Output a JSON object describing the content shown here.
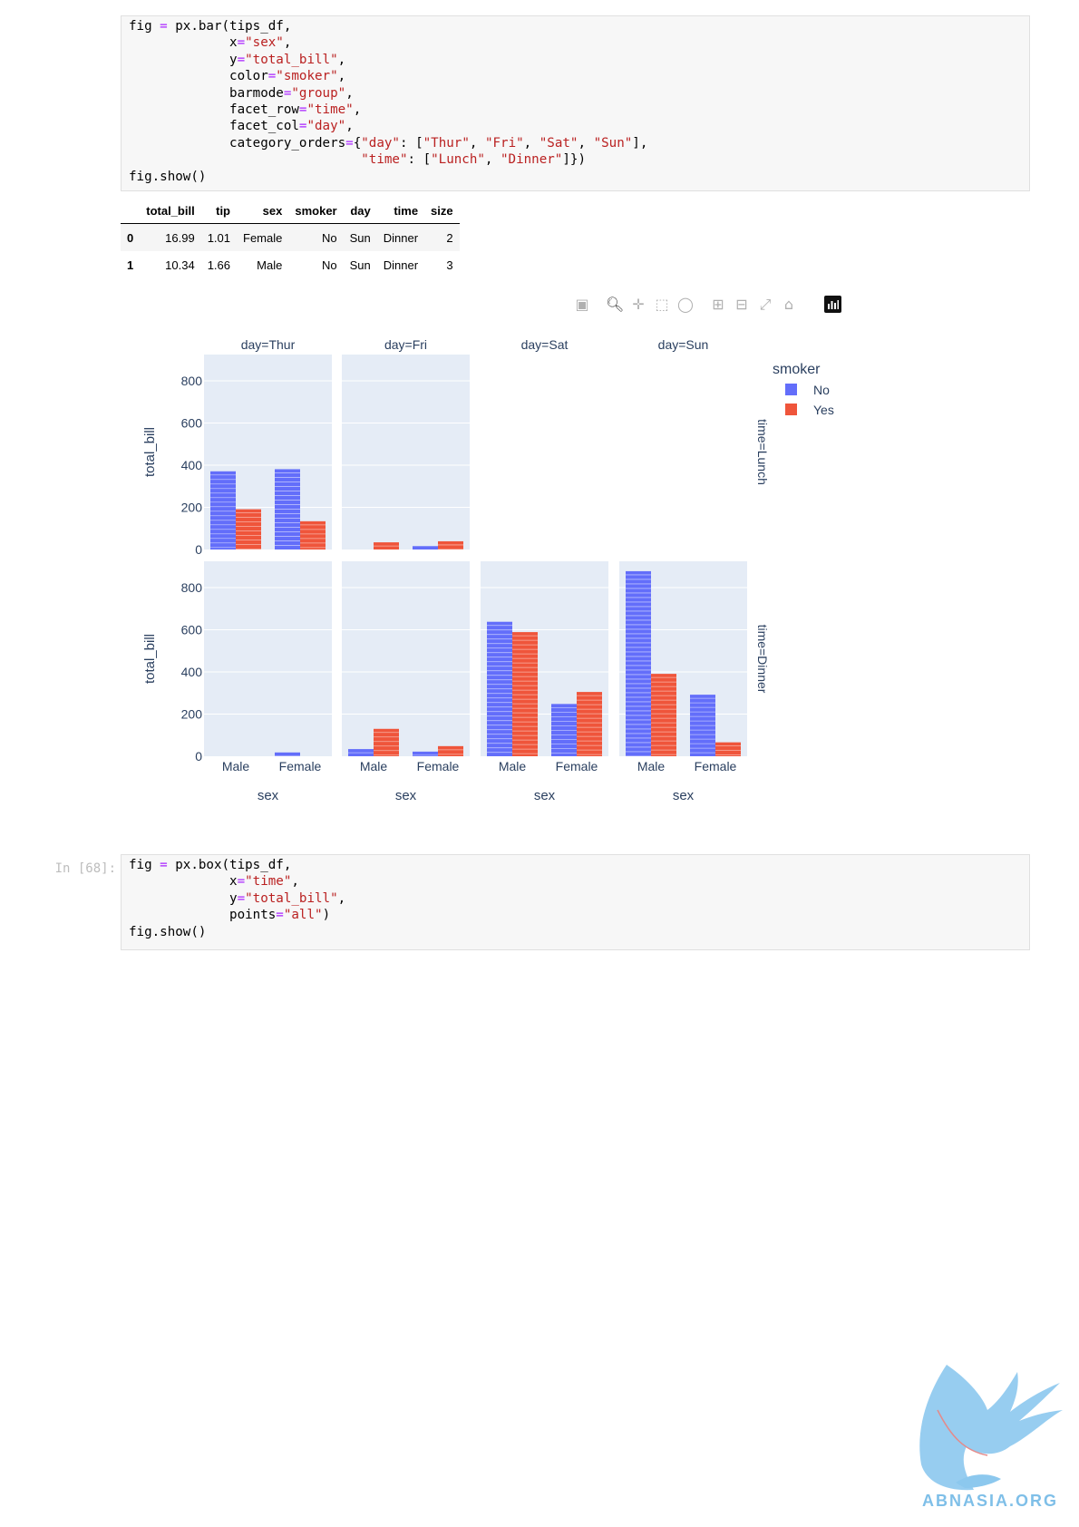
{
  "cell1": {
    "code": [
      "fig = px.bar(tips_df,",
      "             x=\"sex\",",
      "             y=\"total_bill\",",
      "             color=\"smoker\",",
      "             barmode=\"group\",",
      "             facet_row=\"time\",",
      "             facet_col=\"day\",",
      "             category_orders={\"day\": [\"Thur\", \"Fri\", \"Sat\", \"Sun\"],",
      "                              \"time\": [\"Lunch\", \"Dinner\"]})",
      "fig.show()"
    ]
  },
  "dataframe": {
    "columns": [
      "",
      "total_bill",
      "tip",
      "sex",
      "smoker",
      "day",
      "time",
      "size"
    ],
    "rows": [
      [
        "0",
        "16.99",
        "1.01",
        "Female",
        "No",
        "Sun",
        "Dinner",
        "2"
      ],
      [
        "1",
        "10.34",
        "1.66",
        "Male",
        "No",
        "Sun",
        "Dinner",
        "3"
      ]
    ]
  },
  "toolbar": {
    "icons": [
      "camera-icon",
      "zoom-icon",
      "pan-icon",
      "box-select-icon",
      "lasso-select-icon",
      "zoom-in-icon",
      "zoom-out-icon",
      "autoscale-icon",
      "reset-axes-icon",
      "plotly-logo-icon"
    ]
  },
  "chart_data": {
    "type": "bar",
    "barmode": "group",
    "categories": [
      "Male",
      "Female"
    ],
    "facet_col_labels": [
      "day=Thur",
      "day=Fri",
      "day=Sat",
      "day=Sun"
    ],
    "facet_row_labels": [
      "time=Lunch",
      "time=Dinner"
    ],
    "xlabel": "sex",
    "ylabel": "total_bill",
    "ylim": [
      0,
      900
    ],
    "yticks": [
      0,
      200,
      400,
      600,
      800
    ],
    "legend": {
      "title": "smoker",
      "position": "top-right"
    },
    "colors": {
      "No": "#636efa",
      "Yes": "#ef553b",
      "panel_bg": "#e5ecf6"
    },
    "facets": [
      {
        "row": "time=Lunch",
        "col": "day=Thur",
        "series": [
          {
            "name": "No",
            "values": [
              371,
              381
            ]
          },
          {
            "name": "Yes",
            "values": [
              191,
              134
            ]
          }
        ]
      },
      {
        "row": "time=Lunch",
        "col": "day=Fri",
        "series": [
          {
            "name": "No",
            "values": [
              0,
              16
            ]
          },
          {
            "name": "Yes",
            "values": [
              34,
              39
            ]
          }
        ]
      },
      {
        "row": "time=Lunch",
        "col": "day=Sat",
        "series": [
          {
            "name": "No",
            "values": [
              0,
              0
            ]
          },
          {
            "name": "Yes",
            "values": [
              0,
              0
            ]
          }
        ]
      },
      {
        "row": "time=Lunch",
        "col": "day=Sun",
        "series": [
          {
            "name": "No",
            "values": [
              0,
              0
            ]
          },
          {
            "name": "Yes",
            "values": [
              0,
              0
            ]
          }
        ]
      },
      {
        "row": "time=Dinner",
        "col": "day=Thur",
        "series": [
          {
            "name": "No",
            "values": [
              0,
              18
            ]
          },
          {
            "name": "Yes",
            "values": [
              0,
              0
            ]
          }
        ]
      },
      {
        "row": "time=Dinner",
        "col": "day=Fri",
        "series": [
          {
            "name": "No",
            "values": [
              34,
              22
            ]
          },
          {
            "name": "Yes",
            "values": [
              130,
              48
            ]
          }
        ]
      },
      {
        "row": "time=Dinner",
        "col": "day=Sat",
        "series": [
          {
            "name": "No",
            "values": [
              638,
              248
            ]
          },
          {
            "name": "Yes",
            "values": [
              589,
              305
            ]
          }
        ]
      },
      {
        "row": "time=Dinner",
        "col": "day=Sun",
        "series": [
          {
            "name": "No",
            "values": [
              878,
              292
            ]
          },
          {
            "name": "Yes",
            "values": [
              391,
              66
            ]
          }
        ]
      }
    ]
  },
  "cell2": {
    "prompt": "In [68]:",
    "code": [
      "fig = px.box(tips_df,",
      "             x=\"time\",",
      "             y=\"total_bill\",",
      "             points=\"all\")",
      "fig.show()"
    ]
  },
  "watermark": {
    "text": "ABNASIA.ORG",
    "color": "#7fbfe8"
  }
}
